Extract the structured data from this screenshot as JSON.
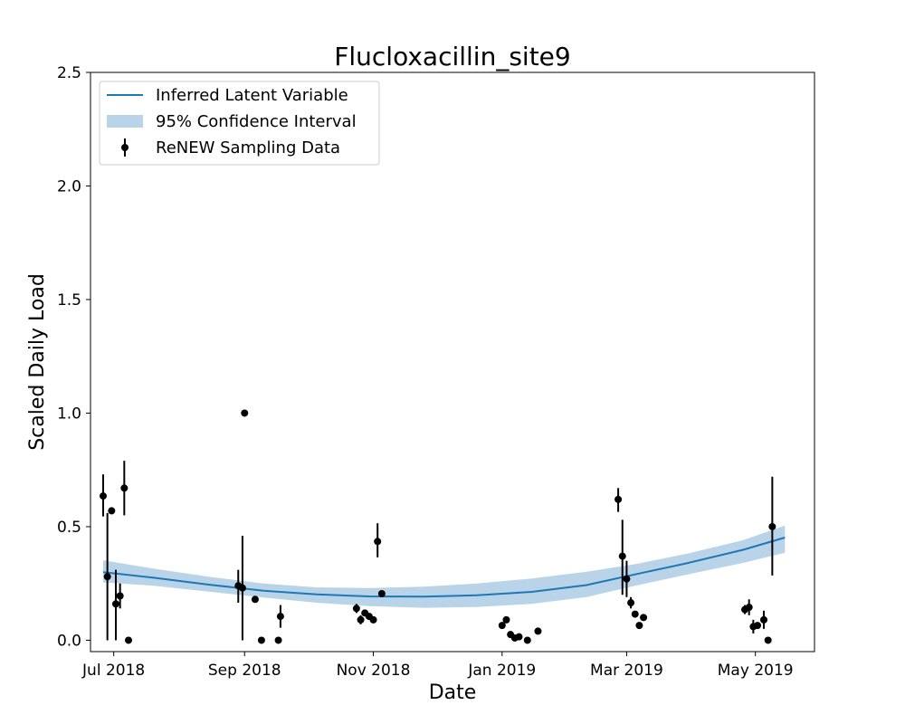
{
  "chart_data": {
    "type": "line",
    "title": "Flucloxacillin_site9",
    "xlabel": "Date",
    "ylabel": "Scaled Daily Load",
    "xlim": [
      "2018-06-20",
      "2019-05-29"
    ],
    "ylim": [
      -0.05,
      2.5
    ],
    "x_ticks": [
      {
        "date": "2018-07-01",
        "label": "Jul 2018"
      },
      {
        "date": "2018-09-01",
        "label": "Sep 2018"
      },
      {
        "date": "2018-11-01",
        "label": "Nov 2018"
      },
      {
        "date": "2019-01-01",
        "label": "Jan 2019"
      },
      {
        "date": "2019-03-01",
        "label": "Mar 2019"
      },
      {
        "date": "2019-05-01",
        "label": "May 2019"
      }
    ],
    "y_ticks": [
      {
        "value": 0.0,
        "label": "0.0"
      },
      {
        "value": 0.5,
        "label": "0.5"
      },
      {
        "value": 1.0,
        "label": "1.0"
      },
      {
        "value": 1.5,
        "label": "1.5"
      },
      {
        "value": 2.0,
        "label": "2.0"
      },
      {
        "value": 2.5,
        "label": "2.5"
      }
    ],
    "grid": false,
    "legend_position": "top-left",
    "series": [
      {
        "name": "Inferred Latent Variable",
        "kind": "line",
        "color": "#1f77b4",
        "points": [
          {
            "x": "2018-06-26",
            "y": 0.3
          },
          {
            "x": "2018-07-20",
            "y": 0.275
          },
          {
            "x": "2018-08-15",
            "y": 0.245
          },
          {
            "x": "2018-09-10",
            "y": 0.218
          },
          {
            "x": "2018-10-05",
            "y": 0.202
          },
          {
            "x": "2018-10-30",
            "y": 0.193
          },
          {
            "x": "2018-11-25",
            "y": 0.192
          },
          {
            "x": "2018-12-20",
            "y": 0.198
          },
          {
            "x": "2019-01-15",
            "y": 0.213
          },
          {
            "x": "2019-02-10",
            "y": 0.243
          },
          {
            "x": "2019-03-05",
            "y": 0.29
          },
          {
            "x": "2019-03-30",
            "y": 0.34
          },
          {
            "x": "2019-04-25",
            "y": 0.398
          },
          {
            "x": "2019-05-15",
            "y": 0.452
          }
        ]
      },
      {
        "name": "95% Confidence Interval",
        "kind": "band",
        "color": "#b9d4e9",
        "points": [
          {
            "x": "2018-06-26",
            "lower": 0.255,
            "upper": 0.352
          },
          {
            "x": "2018-07-20",
            "lower": 0.24,
            "upper": 0.315
          },
          {
            "x": "2018-08-15",
            "lower": 0.214,
            "upper": 0.28
          },
          {
            "x": "2018-09-10",
            "lower": 0.188,
            "upper": 0.25
          },
          {
            "x": "2018-10-05",
            "lower": 0.165,
            "upper": 0.233
          },
          {
            "x": "2018-10-30",
            "lower": 0.15,
            "upper": 0.23
          },
          {
            "x": "2018-11-25",
            "lower": 0.143,
            "upper": 0.236
          },
          {
            "x": "2018-12-20",
            "lower": 0.146,
            "upper": 0.25
          },
          {
            "x": "2019-01-15",
            "lower": 0.16,
            "upper": 0.272
          },
          {
            "x": "2019-02-10",
            "lower": 0.19,
            "upper": 0.302
          },
          {
            "x": "2019-03-05",
            "lower": 0.24,
            "upper": 0.335
          },
          {
            "x": "2019-03-30",
            "lower": 0.29,
            "upper": 0.382
          },
          {
            "x": "2019-04-25",
            "lower": 0.34,
            "upper": 0.44
          },
          {
            "x": "2019-05-15",
            "lower": 0.385,
            "upper": 0.505
          }
        ]
      },
      {
        "name": "ReNEW Sampling Data",
        "kind": "errorbar",
        "color": "#000000",
        "points": [
          {
            "x": "2018-06-26",
            "y": 0.635,
            "lower": 0.545,
            "upper": 0.73
          },
          {
            "x": "2018-06-28",
            "y": 0.28,
            "lower": 0.0,
            "upper": 0.56
          },
          {
            "x": "2018-06-30",
            "y": 0.57,
            "lower": 0.555,
            "upper": 0.58
          },
          {
            "x": "2018-07-02",
            "y": 0.16,
            "lower": 0.0,
            "upper": 0.31
          },
          {
            "x": "2018-07-04",
            "y": 0.195,
            "lower": 0.14,
            "upper": 0.25
          },
          {
            "x": "2018-07-06",
            "y": 0.67,
            "lower": 0.55,
            "upper": 0.79
          },
          {
            "x": "2018-07-08",
            "y": 0.0
          },
          {
            "x": "2018-08-29",
            "y": 0.24,
            "lower": 0.165,
            "upper": 0.31
          },
          {
            "x": "2018-08-31",
            "y": 0.23,
            "lower": 0.0,
            "upper": 0.46
          },
          {
            "x": "2018-09-01",
            "y": 1.0
          },
          {
            "x": "2018-09-06",
            "y": 0.18
          },
          {
            "x": "2018-09-09",
            "y": 0.0
          },
          {
            "x": "2018-09-17",
            "y": 0.0
          },
          {
            "x": "2018-09-18",
            "y": 0.105,
            "lower": 0.055,
            "upper": 0.155
          },
          {
            "x": "2018-10-24",
            "y": 0.14,
            "lower": 0.12,
            "upper": 0.16
          },
          {
            "x": "2018-10-26",
            "y": 0.09,
            "lower": 0.07,
            "upper": 0.11
          },
          {
            "x": "2018-10-28",
            "y": 0.12
          },
          {
            "x": "2018-10-30",
            "y": 0.105
          },
          {
            "x": "2018-11-01",
            "y": 0.09
          },
          {
            "x": "2018-11-03",
            "y": 0.435,
            "lower": 0.365,
            "upper": 0.515
          },
          {
            "x": "2018-11-05",
            "y": 0.205
          },
          {
            "x": "2019-01-01",
            "y": 0.065
          },
          {
            "x": "2019-01-03",
            "y": 0.09
          },
          {
            "x": "2019-01-05",
            "y": 0.025
          },
          {
            "x": "2019-01-07",
            "y": 0.01
          },
          {
            "x": "2019-01-09",
            "y": 0.015
          },
          {
            "x": "2019-01-13",
            "y": 0.0
          },
          {
            "x": "2019-01-18",
            "y": 0.04
          },
          {
            "x": "2019-02-25",
            "y": 0.62,
            "lower": 0.565,
            "upper": 0.67
          },
          {
            "x": "2019-02-27",
            "y": 0.37,
            "lower": 0.2,
            "upper": 0.53
          },
          {
            "x": "2019-03-01",
            "y": 0.27,
            "lower": 0.19,
            "upper": 0.35
          },
          {
            "x": "2019-03-03",
            "y": 0.165,
            "lower": 0.14,
            "upper": 0.19
          },
          {
            "x": "2019-03-05",
            "y": 0.115
          },
          {
            "x": "2019-03-07",
            "y": 0.065
          },
          {
            "x": "2019-03-09",
            "y": 0.1
          },
          {
            "x": "2019-04-26",
            "y": 0.135,
            "lower": 0.115,
            "upper": 0.155
          },
          {
            "x": "2019-04-28",
            "y": 0.145,
            "lower": 0.11,
            "upper": 0.18
          },
          {
            "x": "2019-04-30",
            "y": 0.06,
            "lower": 0.03,
            "upper": 0.09
          },
          {
            "x": "2019-05-02",
            "y": 0.065
          },
          {
            "x": "2019-05-05",
            "y": 0.09,
            "lower": 0.05,
            "upper": 0.13
          },
          {
            "x": "2019-05-07",
            "y": 0.0
          },
          {
            "x": "2019-05-09",
            "y": 0.5,
            "lower": 0.285,
            "upper": 0.72
          }
        ]
      }
    ]
  }
}
